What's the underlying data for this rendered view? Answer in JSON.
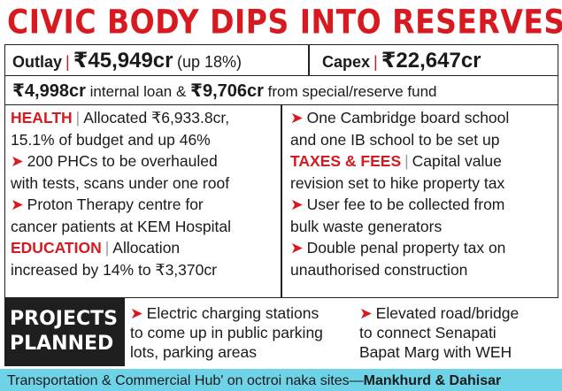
{
  "headline": "CIVIC BODY DIPS INTO RESERVES",
  "outlay": {
    "label": "Outlay",
    "amount": "₹45,949cr",
    "change": "(up 18%)",
    "capex_label": "Capex",
    "capex_amount": "₹22,647cr"
  },
  "loan": {
    "amount1": "₹4,998cr",
    "text1": "internal loan &",
    "amount2": "₹9,706cr",
    "text2": "from special/reserve fund"
  },
  "left_col": {
    "health_label": "HEALTH",
    "health_lines": [
      "Allocated ₹6,933.8cr,",
      "15.1% of budget and up 46%"
    ],
    "bullet1": [
      "200 PHCs to be overhauled",
      "with tests, scans under one roof"
    ],
    "bullet2": [
      "Proton Therapy centre for",
      "cancer patients at KEM Hospital"
    ],
    "education_label": "EDUCATION",
    "education_lines": [
      "Allocation",
      "increased by 14% to ₹3,370cr"
    ]
  },
  "right_col": {
    "bullet1": [
      "One Cambridge board school",
      "and one IB school to be set up"
    ],
    "taxes_label": "TAXES & FEES",
    "taxes_lines": [
      "Capital value",
      "revision set to hike property tax"
    ],
    "bullet2": [
      "User fee to be collected from",
      "bulk waste generators"
    ],
    "bullet3": [
      "Double penal property tax on",
      "unauthorised construction"
    ]
  },
  "projects": {
    "label_line1": "PROJECTS",
    "label_line2": "PLANNED",
    "item1": [
      "Electric charging stations",
      "to come up in public parking",
      "lots, parking areas"
    ],
    "item2": [
      "Elevated road/bridge",
      "to connect Senapati",
      "Bapat Marg with WEH"
    ]
  },
  "footer": {
    "text": "Transportation & Commercial Hub' on octroi naka sites—",
    "bold": "Mankhurd & Dahisar"
  }
}
